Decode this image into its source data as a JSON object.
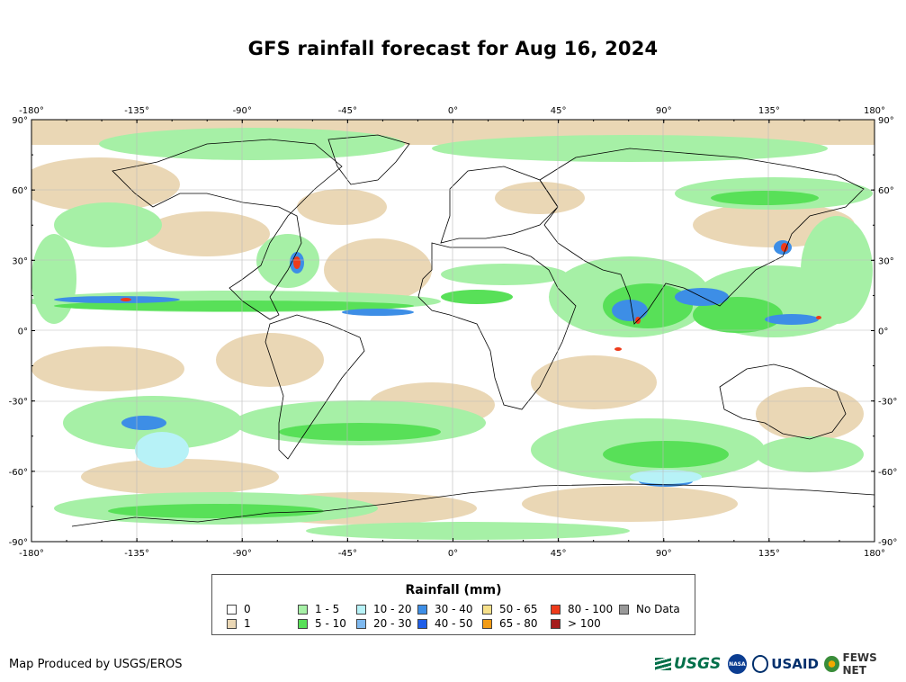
{
  "title": "GFS rainfall forecast for Aug 16, 2024",
  "map": {
    "lon_ticks": [
      "-180°",
      "-135°",
      "-90°",
      "-45°",
      "0°",
      "45°",
      "90°",
      "135°",
      "180°"
    ],
    "lat_ticks": [
      "90°",
      "60°",
      "30°",
      "0°",
      "-30°",
      "-60°",
      "-90°"
    ]
  },
  "legend": {
    "title": "Rainfall (mm)",
    "items": [
      {
        "label": "0",
        "color": "#ffffff"
      },
      {
        "label": "1",
        "color": "#ead7b5"
      },
      {
        "label": "1 - 5",
        "color": "#a6f0a6"
      },
      {
        "label": "5 - 10",
        "color": "#58e058"
      },
      {
        "label": "10 - 20",
        "color": "#b7f2f7"
      },
      {
        "label": "20 - 30",
        "color": "#7fb9ef"
      },
      {
        "label": "30 - 40",
        "color": "#3d8ee6"
      },
      {
        "label": "40 - 50",
        "color": "#1f5ee8"
      },
      {
        "label": "50 - 65",
        "color": "#f6e08a"
      },
      {
        "label": "65 - 80",
        "color": "#f29b14"
      },
      {
        "label": "80 - 100",
        "color": "#ee3b1b"
      },
      {
        "label": "> 100",
        "color": "#a51d1d"
      },
      {
        "label": "No Data",
        "color": "#999999"
      }
    ]
  },
  "credit": "Map Produced by USGS/EROS",
  "logos": {
    "usgs": "USGS",
    "nasa": "NASA",
    "usaid": "USAID",
    "fews": "FEWS NET"
  }
}
